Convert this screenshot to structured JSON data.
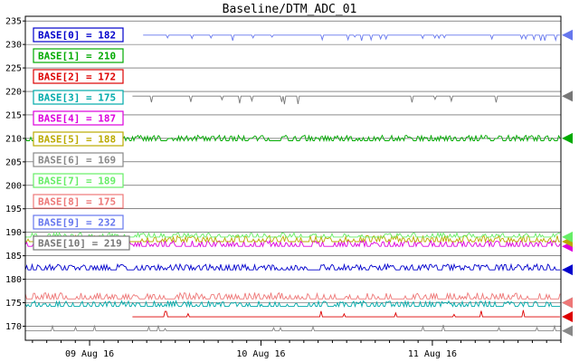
{
  "chart_data": {
    "type": "line",
    "title": "Baseline/DTM_ADC_01",
    "xlabel": "",
    "ylabel": "",
    "ylim": [
      167,
      236
    ],
    "yticks": [
      170,
      175,
      180,
      185,
      190,
      195,
      200,
      205,
      210,
      215,
      220,
      225,
      230,
      235
    ],
    "xticks": [
      {
        "label": "09 Aug 16",
        "t": 0.12
      },
      {
        "label": "10 Aug 16",
        "t": 0.44
      },
      {
        "label": "11 Aug 16",
        "t": 0.76
      }
    ],
    "grid": true,
    "legend": "top-left",
    "series": [
      {
        "name": "BASE[0] = 182",
        "value": 182,
        "color": "#0000cc",
        "line_y": 182,
        "noise": 0.8,
        "dir": 1,
        "start": 0.0,
        "density": 0.55
      },
      {
        "name": "BASE[1] = 210",
        "value": 210,
        "color": "#00aa00",
        "line_y": 209.5,
        "noise": 0.8,
        "dir": 1,
        "start": 0.0,
        "density": 0.55
      },
      {
        "name": "BASE[2] = 172",
        "value": 172,
        "color": "#dd0000",
        "line_y": 172,
        "noise": 1.0,
        "dir": 1,
        "start": 0.2,
        "density": 0.02
      },
      {
        "name": "BASE[3] = 175",
        "value": 175,
        "color": "#00aaaa",
        "line_y": 174.2,
        "noise": 0.8,
        "dir": 1,
        "start": 0.0,
        "density": 0.45
      },
      {
        "name": "BASE[4] = 187",
        "value": 187,
        "color": "#dd00dd",
        "line_y": 187,
        "noise": 0.8,
        "dir": 1,
        "start": 0.0,
        "density": 0.45
      },
      {
        "name": "BASE[5] = 188",
        "value": 188,
        "color": "#bbaa00",
        "line_y": 188,
        "noise": 0.9,
        "dir": 1,
        "start": 0.0,
        "density": 0.4
      },
      {
        "name": "BASE[6] = 169",
        "value": 169,
        "color": "#888888",
        "line_y": 169,
        "noise": 0.9,
        "dir": 1,
        "start": 0.0,
        "density": 0.05
      },
      {
        "name": "BASE[7] = 189",
        "value": 189,
        "color": "#66ee66",
        "line_y": 189,
        "noise": 0.6,
        "dir": 1,
        "start": 0.0,
        "density": 0.3
      },
      {
        "name": "BASE[8] = 175",
        "value": 175,
        "color": "#ee7777",
        "line_y": 175.8,
        "noise": 0.9,
        "dir": 1,
        "start": 0.0,
        "density": 0.35
      },
      {
        "name": "BASE[9] = 232",
        "value": 232,
        "color": "#6677ee",
        "line_y": 232,
        "noise": 0.8,
        "dir": -1,
        "start": 0.22,
        "density": 0.06
      },
      {
        "name": "BASE[10] = 219",
        "value": 219,
        "color": "#777777",
        "line_y": 219,
        "noise": 1.2,
        "dir": -1,
        "start": 0.2,
        "density": 0.03
      }
    ]
  }
}
